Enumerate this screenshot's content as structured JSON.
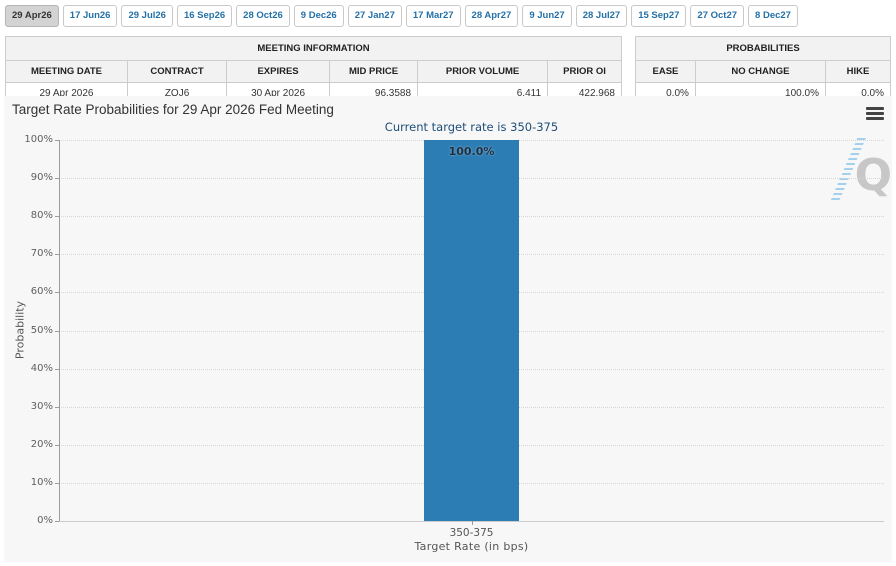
{
  "tabs": {
    "items": [
      {
        "label": "29 Apr26",
        "selected": true
      },
      {
        "label": "17 Jun26",
        "selected": false
      },
      {
        "label": "29 Jul26",
        "selected": false
      },
      {
        "label": "16 Sep26",
        "selected": false
      },
      {
        "label": "28 Oct26",
        "selected": false
      },
      {
        "label": "9 Dec26",
        "selected": false
      },
      {
        "label": "27 Jan27",
        "selected": false
      },
      {
        "label": "17 Mar27",
        "selected": false
      },
      {
        "label": "28 Apr27",
        "selected": false
      },
      {
        "label": "9 Jun27",
        "selected": false
      },
      {
        "label": "28 Jul27",
        "selected": false
      },
      {
        "label": "15 Sep27",
        "selected": false
      },
      {
        "label": "27 Oct27",
        "selected": false
      },
      {
        "label": "8 Dec27",
        "selected": false
      }
    ]
  },
  "meeting_info": {
    "title": "MEETING INFORMATION",
    "columns": [
      "MEETING DATE",
      "CONTRACT",
      "EXPIRES",
      "MID PRICE",
      "PRIOR VOLUME",
      "PRIOR OI"
    ],
    "row": [
      "29 Apr 2026",
      "ZQJ6",
      "30 Apr 2026",
      "96.3588",
      "6,411",
      "422,968"
    ]
  },
  "probabilities": {
    "title": "PROBABILITIES",
    "columns": [
      "EASE",
      "NO CHANGE",
      "HIKE"
    ],
    "row": [
      "0.0%",
      "100.0%",
      "0.0%"
    ]
  },
  "chart_data": {
    "type": "bar",
    "title": "Target Rate Probabilities for 29 Apr 2026 Fed Meeting",
    "subtitle": "Current target rate is 350-375",
    "categories": [
      "350-375"
    ],
    "values": [
      100.0
    ],
    "bar_labels": [
      "100.0%"
    ],
    "xlabel": "Target Rate (in bps)",
    "ylabel": "Probability",
    "ylim": [
      0,
      100
    ],
    "ytick_step": 10,
    "ytick_suffix": "%",
    "legend": "none",
    "grid": "horizontal-dotted",
    "bar_color": "#2d7db5"
  },
  "colors": {
    "tab_blue": "#2470a8",
    "bar_blue": "#2d7db5",
    "subtitle_navy": "#1f4e79",
    "panel_bg": "#f7f7f7"
  },
  "icons": {
    "menu_icon": "hamburger-menu",
    "watermark_letter": "Q"
  }
}
